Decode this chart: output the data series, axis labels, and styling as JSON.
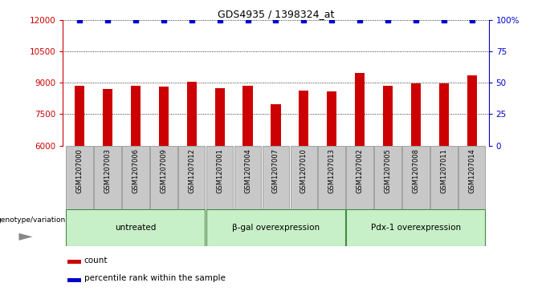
{
  "title": "GDS4935 / 1398324_at",
  "samples": [
    "GSM1207000",
    "GSM1207003",
    "GSM1207006",
    "GSM1207009",
    "GSM1207012",
    "GSM1207001",
    "GSM1207004",
    "GSM1207007",
    "GSM1207010",
    "GSM1207013",
    "GSM1207002",
    "GSM1207005",
    "GSM1207008",
    "GSM1207011",
    "GSM1207014"
  ],
  "counts": [
    8880,
    8720,
    8860,
    8840,
    9060,
    8760,
    8860,
    7980,
    8640,
    8580,
    9480,
    8860,
    8980,
    8980,
    9380
  ],
  "bar_color": "#cc0000",
  "dot_color": "#0000cc",
  "ylim_left": [
    6000,
    12000
  ],
  "ylim_right": [
    0,
    100
  ],
  "yticks_left": [
    6000,
    7500,
    9000,
    10500,
    12000
  ],
  "ytick_labels_left": [
    "6000",
    "7500",
    "9000",
    "10500",
    "12000"
  ],
  "yticks_right": [
    0,
    25,
    50,
    75,
    100
  ],
  "ytick_labels_right": [
    "0",
    "25",
    "50",
    "75",
    "100%"
  ],
  "groups": [
    {
      "label": "untreated",
      "start": 0,
      "end": 5
    },
    {
      "label": "β-gal overexpression",
      "start": 5,
      "end": 10
    },
    {
      "label": "Pdx-1 overexpression",
      "start": 10,
      "end": 15
    }
  ],
  "group_color": "#c8f0c8",
  "group_border_color": "#448844",
  "xlabel_left": "genotype/variation",
  "legend_count_label": "count",
  "legend_pct_label": "percentile rank within the sample",
  "tick_label_bg": "#c8c8c8",
  "tick_label_border": "#888888",
  "bar_width": 0.35
}
